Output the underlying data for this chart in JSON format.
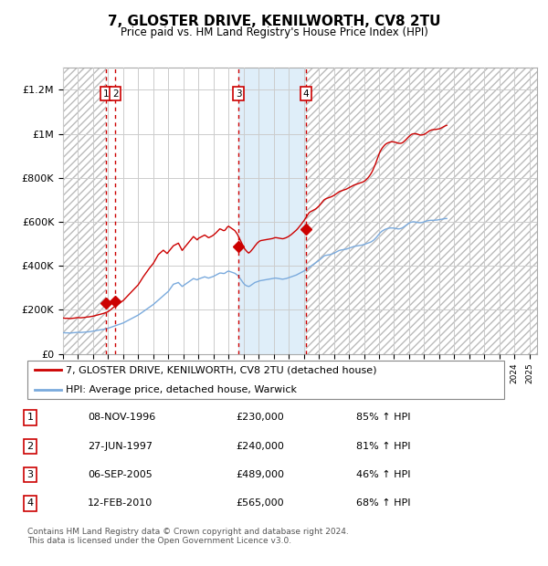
{
  "title": "7, GLOSTER DRIVE, KENILWORTH, CV8 2TU",
  "subtitle": "Price paid vs. HM Land Registry's House Price Index (HPI)",
  "ylabel_ticks": [
    "£0",
    "£200K",
    "£400K",
    "£600K",
    "£800K",
    "£1M",
    "£1.2M"
  ],
  "ytick_values": [
    0,
    200000,
    400000,
    600000,
    800000,
    1000000,
    1200000
  ],
  "ylim": [
    0,
    1300000
  ],
  "xlim_start": 1994.0,
  "xlim_end": 2025.5,
  "transactions": [
    {
      "num": 1,
      "date": "08-NOV-1996",
      "price": 230000,
      "year": 1996.85,
      "pct": "85%",
      "dir": "↑"
    },
    {
      "num": 2,
      "date": "27-JUN-1997",
      "price": 240000,
      "year": 1997.48,
      "pct": "81%",
      "dir": "↑"
    },
    {
      "num": 3,
      "date": "06-SEP-2005",
      "price": 489000,
      "year": 2005.67,
      "pct": "46%",
      "dir": "↑"
    },
    {
      "num": 4,
      "date": "12-FEB-2010",
      "price": 565000,
      "year": 2010.12,
      "pct": "68%",
      "dir": "↑"
    }
  ],
  "hpi_line_color": "#7aaadd",
  "price_line_color": "#cc0000",
  "marker_color": "#cc0000",
  "vline_color": "#cc0000",
  "legend_label_red": "7, GLOSTER DRIVE, KENILWORTH, CV8 2TU (detached house)",
  "legend_label_blue": "HPI: Average price, detached house, Warwick",
  "footer": "Contains HM Land Registry data © Crown copyright and database right 2024.\nThis data is licensed under the Open Government Licence v3.0.",
  "hpi_months": [
    96000,
    95500,
    95000,
    95200,
    94800,
    94500,
    94200,
    95000,
    95500,
    96000,
    96500,
    97000,
    97500,
    97000,
    96800,
    97200,
    97500,
    98000,
    98500,
    99000,
    99500,
    100000,
    101000,
    102000,
    103000,
    104000,
    105000,
    106000,
    107000,
    108000,
    109000,
    110000,
    111000,
    112000,
    113000,
    114000,
    116000,
    118000,
    120000,
    122000,
    124000,
    126000,
    128000,
    130000,
    132000,
    134000,
    136000,
    138000,
    140000,
    143000,
    146000,
    149000,
    152000,
    155000,
    158000,
    161000,
    164000,
    167000,
    170000,
    173000,
    176000,
    180000,
    184000,
    188000,
    192000,
    196000,
    200000,
    204000,
    208000,
    212000,
    216000,
    220000,
    224000,
    229000,
    234000,
    239000,
    244000,
    249000,
    254000,
    259000,
    264000,
    269000,
    274000,
    279000,
    284000,
    292000,
    300000,
    308000,
    316000,
    318000,
    320000,
    322000,
    324000,
    318000,
    312000,
    306000,
    310000,
    314000,
    318000,
    322000,
    326000,
    330000,
    334000,
    338000,
    342000,
    340000,
    338000,
    336000,
    340000,
    342000,
    344000,
    346000,
    348000,
    350000,
    348000,
    346000,
    344000,
    346000,
    348000,
    350000,
    352000,
    355000,
    358000,
    361000,
    364000,
    367000,
    367000,
    366000,
    365000,
    366000,
    370000,
    374000,
    376000,
    374000,
    372000,
    370000,
    368000,
    366000,
    362000,
    358000,
    352000,
    344000,
    336000,
    328000,
    320000,
    314000,
    310000,
    308000,
    306000,
    308000,
    312000,
    316000,
    320000,
    324000,
    326000,
    328000,
    330000,
    332000,
    333000,
    334000,
    335000,
    336000,
    337000,
    338000,
    339000,
    340000,
    341000,
    342000,
    343000,
    344000,
    344000,
    343000,
    342000,
    341000,
    340000,
    339000,
    340000,
    341000,
    342000,
    344000,
    346000,
    348000,
    350000,
    352000,
    354000,
    356000,
    358000,
    361000,
    364000,
    367000,
    370000,
    373000,
    376000,
    380000,
    384000,
    388000,
    392000,
    396000,
    400000,
    404000,
    408000,
    412000,
    416000,
    420000,
    424000,
    429000,
    434000,
    439000,
    444000,
    447000,
    448000,
    449000,
    450000,
    451000,
    453000,
    455000,
    457000,
    460000,
    463000,
    466000,
    469000,
    471000,
    472000,
    473000,
    474000,
    475000,
    476000,
    478000,
    480000,
    482000,
    484000,
    486000,
    488000,
    489000,
    490000,
    491000,
    492000,
    493000,
    494000,
    495000,
    497000,
    499000,
    501000,
    503000,
    505000,
    507000,
    510000,
    514000,
    518000,
    524000,
    530000,
    537000,
    544000,
    551000,
    556000,
    560000,
    563000,
    566000,
    568000,
    570000,
    571000,
    572000,
    572000,
    572000,
    571000,
    570000,
    569000,
    568000,
    568000,
    569000,
    571000,
    574000,
    578000,
    582000,
    586000,
    590000,
    594000,
    597000,
    599000,
    600000,
    600000,
    599000,
    598000,
    597000,
    596000,
    596000,
    597000,
    598000,
    600000,
    602000,
    604000,
    605000,
    606000,
    607000,
    607000,
    607000,
    607000,
    608000,
    608000,
    609000,
    610000,
    611000,
    612000,
    613000,
    614000,
    615000,
    615000
  ],
  "price_months": [
    163000,
    162000,
    161000,
    161500,
    161000,
    160500,
    160000,
    161000,
    161500,
    162000,
    163000,
    164000,
    164500,
    164000,
    163500,
    164000,
    164500,
    165000,
    166000,
    167000,
    167500,
    168000,
    169000,
    170000,
    171000,
    172500,
    174000,
    175500,
    177000,
    178500,
    180000,
    181500,
    183000,
    185000,
    187000,
    189000,
    192000,
    196000,
    200000,
    205000,
    210000,
    214000,
    218000,
    222000,
    226000,
    230000,
    234000,
    238000,
    242000,
    248000,
    254000,
    260000,
    266000,
    272000,
    278000,
    284000,
    290000,
    296000,
    302000,
    308000,
    314000,
    323000,
    332000,
    341000,
    350000,
    358000,
    366000,
    374000,
    382000,
    390000,
    397000,
    404000,
    411000,
    421000,
    431000,
    441000,
    451000,
    456000,
    461000,
    466000,
    471000,
    466000,
    461000,
    456000,
    463000,
    470000,
    477000,
    484000,
    491000,
    494000,
    497000,
    500000,
    503000,
    492000,
    481000,
    470000,
    477000,
    484000,
    491000,
    498000,
    505000,
    512000,
    519000,
    526000,
    533000,
    528000,
    523000,
    518000,
    525000,
    528000,
    531000,
    534000,
    537000,
    540000,
    536000,
    532000,
    528000,
    530000,
    533000,
    536000,
    540000,
    545000,
    550000,
    556000,
    562000,
    568000,
    566000,
    563000,
    560000,
    561000,
    568000,
    576000,
    580000,
    576000,
    572000,
    568000,
    564000,
    560000,
    552000,
    544000,
    533000,
    521000,
    509000,
    497000,
    486000,
    476000,
    469000,
    463000,
    458000,
    462000,
    468000,
    475000,
    482000,
    490000,
    497000,
    504000,
    509000,
    513000,
    515000,
    516000,
    517000,
    518000,
    519000,
    520000,
    521000,
    522000,
    523000,
    524000,
    526000,
    528000,
    528000,
    527000,
    526000,
    525000,
    524000,
    523000,
    524000,
    526000,
    528000,
    531000,
    534000,
    538000,
    542000,
    547000,
    552000,
    557000,
    562000,
    568000,
    575000,
    582000,
    589000,
    597000,
    604000,
    613000,
    622000,
    631000,
    640000,
    645000,
    648000,
    651000,
    654000,
    657000,
    661000,
    666000,
    671000,
    678000,
    685000,
    692000,
    699000,
    703000,
    706000,
    708000,
    710000,
    712000,
    714000,
    717000,
    720000,
    724000,
    728000,
    732000,
    736000,
    739000,
    741000,
    743000,
    745000,
    747000,
    749000,
    752000,
    755000,
    758000,
    761000,
    764000,
    767000,
    769000,
    771000,
    773000,
    775000,
    777000,
    779000,
    781000,
    784000,
    788000,
    793000,
    799000,
    806000,
    814000,
    823000,
    834000,
    847000,
    861000,
    876000,
    892000,
    908000,
    921000,
    931000,
    939000,
    946000,
    952000,
    956000,
    959000,
    961000,
    963000,
    964000,
    964000,
    963000,
    962000,
    960000,
    958000,
    957000,
    957000,
    958000,
    961000,
    966000,
    971000,
    977000,
    983000,
    989000,
    994000,
    998000,
    1000000,
    1001000,
    1001000,
    1000000,
    998000,
    996000,
    995000,
    995000,
    996000,
    998000,
    1001000,
    1005000,
    1009000,
    1013000,
    1016000,
    1018000,
    1019000,
    1020000,
    1020000,
    1021000,
    1022000,
    1023000,
    1025000,
    1028000,
    1031000,
    1034000,
    1037000,
    1039000
  ]
}
